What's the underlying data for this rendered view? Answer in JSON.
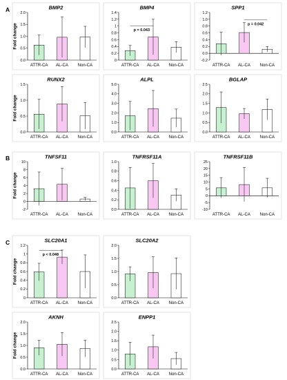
{
  "figure": {
    "panel_labels": [
      "A",
      "B",
      "C"
    ],
    "colors": {
      "ATTR-CA": "#c6f0cf",
      "AL-CA": "#f8c8f2",
      "Non-CA": "#ffffff",
      "frame": "#d0d0d0"
    }
  },
  "chart_data": [
    {
      "type": "bar",
      "title": "BMP2",
      "ylabel": "Fold change",
      "categories": [
        "ATTR-CA",
        "AL-CA",
        "Non-CA"
      ],
      "values": [
        0.63,
        0.96,
        0.97
      ],
      "error": [
        0.42,
        0.85,
        0.45
      ],
      "ylim": [
        0,
        2
      ],
      "yticks": [
        "0.0",
        "0.5",
        "1.0",
        "1.5",
        "2.0"
      ]
    },
    {
      "type": "bar",
      "title": "BMP4",
      "ylabel": "",
      "categories": [
        "ATTR-CA",
        "AL-CA",
        "Non-CA"
      ],
      "values": [
        0.28,
        0.68,
        0.38
      ],
      "error": [
        0.15,
        0.52,
        0.16
      ],
      "ylim": [
        0,
        1.4
      ],
      "yticks": [
        "0",
        "0.2",
        "0.4",
        "0.6",
        "0.8",
        "1",
        "1.2",
        "1.4"
      ],
      "annotation": {
        "text": "p = 0.043",
        "from": 0,
        "to": 1,
        "y": 1.0
      }
    },
    {
      "type": "bar",
      "title": "SPP1",
      "ylabel": "",
      "categories": [
        "ATTR-CA",
        "AL-CA",
        "Non-CA"
      ],
      "values": [
        0.28,
        0.61,
        0.12
      ],
      "error": [
        0.34,
        0.29,
        0.08
      ],
      "ylim": [
        -0.2,
        1.2
      ],
      "yticks": [
        "-0.2",
        "0.0",
        "0.2",
        "0.4",
        "0.6",
        "0.8",
        "1.0",
        "1.2"
      ],
      "annotation": {
        "text": "p = 0.042",
        "from": 1,
        "to": 2,
        "y": 0.98
      }
    },
    {
      "type": "bar",
      "title": "RUNX2",
      "ylabel": "Fold change",
      "categories": [
        "ATTR-CA",
        "AL-CA",
        "Non-CA"
      ],
      "values": [
        0.56,
        0.88,
        0.51
      ],
      "error": [
        0.47,
        0.55,
        0.42
      ],
      "ylim": [
        0,
        1.5
      ],
      "yticks": [
        "0.0",
        "0.5",
        "1.0",
        "1.5"
      ]
    },
    {
      "type": "bar",
      "title": "ALPL",
      "ylabel": "",
      "categories": [
        "ATTR-CA",
        "AL-CA",
        "Non-CA"
      ],
      "values": [
        1.7,
        2.45,
        1.45
      ],
      "error": [
        1.5,
        1.9,
        0.95
      ],
      "ylim": [
        0,
        5
      ],
      "yticks": [
        "0.0",
        "1.0",
        "2.0",
        "3.0",
        "4.0",
        "5.0"
      ]
    },
    {
      "type": "bar",
      "title": "BGLAP",
      "ylabel": "",
      "categories": [
        "ATTR-CA",
        "AL-CA",
        "Non-CA"
      ],
      "values": [
        1.28,
        0.96,
        1.18
      ],
      "error": [
        0.82,
        0.27,
        0.55
      ],
      "ylim": [
        0,
        2.5
      ],
      "yticks": [
        "0.0",
        "0.5",
        "1.0",
        "1.5",
        "2.0",
        "2.5"
      ]
    },
    {
      "type": "bar",
      "title": "TNFSF11",
      "ylabel": "Fold change",
      "categories": [
        "ATTR-CA",
        "AL-CA",
        "Non-CA"
      ],
      "values": [
        3.2,
        4.3,
        0.6
      ],
      "error": [
        4.2,
        4.0,
        0.4
      ],
      "ylim": [
        -2,
        10
      ],
      "yticks": [
        "-2",
        "0",
        "2",
        "4",
        "6",
        "8",
        "10"
      ]
    },
    {
      "type": "bar",
      "title": "TNFRSF11A",
      "ylabel": "",
      "categories": [
        "ATTR-CA",
        "AL-CA",
        "Non-CA"
      ],
      "values": [
        0.45,
        0.6,
        0.3
      ],
      "error": [
        0.43,
        0.36,
        0.13
      ],
      "ylim": [
        0,
        1
      ],
      "yticks": [
        "0.0",
        "0.2",
        "0.4",
        "0.6",
        "0.8",
        "1.0"
      ]
    },
    {
      "type": "bar",
      "title": "TNFRSF11B",
      "ylabel": "",
      "categories": [
        "ATTR-CA",
        "AL-CA",
        "Non-CA"
      ],
      "values": [
        5.8,
        8.2,
        5.8
      ],
      "error": [
        7.5,
        12.5,
        7.0
      ],
      "ylim": [
        -10,
        25
      ],
      "yticks": [
        "-10",
        "-5",
        "0",
        "5",
        "10",
        "15",
        "20",
        "25"
      ]
    },
    {
      "type": "bar",
      "title": "SLC20A1",
      "ylabel": "Fold change",
      "categories": [
        "ATTR-CA",
        "AL-CA",
        "Non-CA"
      ],
      "values": [
        0.59,
        0.93,
        0.6
      ],
      "error": [
        0.2,
        0.16,
        0.38
      ],
      "ylim": [
        0,
        1.2
      ],
      "yticks": [
        "0",
        "0.2",
        "0.4",
        "0.6",
        "0.8",
        "1",
        "1.2"
      ],
      "annotation": {
        "text": "p < 0.048",
        "from": 0,
        "to": 1,
        "y": 1.08
      }
    },
    {
      "type": "bar",
      "title": "SLC20A2",
      "ylabel": "",
      "categories": [
        "ATTR-CA",
        "AL-CA",
        "Non-CA"
      ],
      "values": [
        0.91,
        0.96,
        0.92
      ],
      "error": [
        0.27,
        0.6,
        0.6
      ],
      "ylim": [
        0,
        2
      ],
      "yticks": [
        "0.0",
        "0.5",
        "1.0",
        "1.5",
        "2.0"
      ]
    },
    {
      "type": "bar",
      "title": "AKNH",
      "ylabel": "Fold change",
      "categories": [
        "ATTR-CA",
        "AL-CA",
        "Non-CA"
      ],
      "values": [
        0.9,
        1.05,
        0.87
      ],
      "error": [
        0.32,
        0.5,
        0.36
      ],
      "ylim": [
        0,
        2
      ],
      "yticks": [
        "0.0",
        "0.5",
        "1.0",
        "1.5",
        "2.0"
      ]
    },
    {
      "type": "bar",
      "title": "ENPP1",
      "ylabel": "",
      "categories": [
        "ATTR-CA",
        "AL-CA",
        "Non-CA"
      ],
      "values": [
        0.8,
        1.18,
        0.55
      ],
      "error": [
        0.62,
        0.62,
        0.33
      ],
      "ylim": [
        0,
        2.5
      ],
      "yticks": [
        "0.0",
        "0.5",
        "1.0",
        "1.5",
        "2.0",
        "2.5"
      ]
    }
  ]
}
